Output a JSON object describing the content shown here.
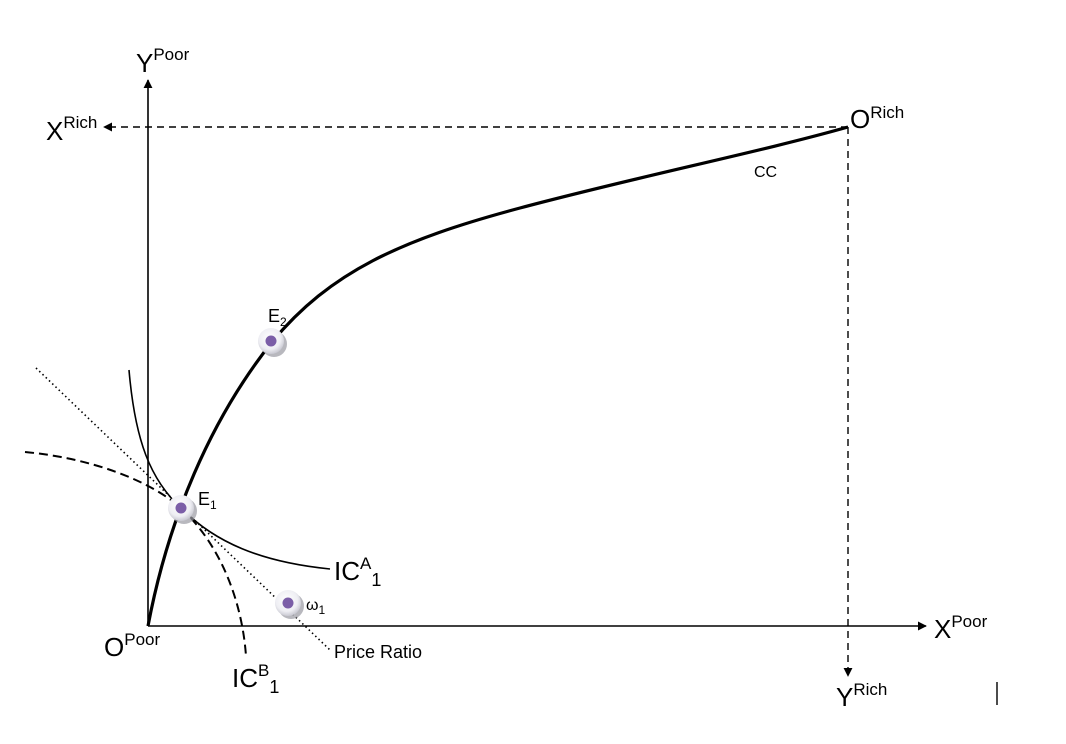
{
  "labels": {
    "y_poor": {
      "base": "Y",
      "sup": "Poor"
    },
    "x_rich": {
      "base": "X",
      "sup": "Rich"
    },
    "o_rich": {
      "base": "O",
      "sup": "Rich"
    },
    "o_poor": {
      "base": "O",
      "sup": "Poor"
    },
    "x_poor": {
      "base": "X",
      "sup": "Poor"
    },
    "y_rich": {
      "base": "Y",
      "sup": "Rich"
    },
    "cc": "CC",
    "e2": {
      "base": "E",
      "sub": "2"
    },
    "e1": {
      "base": "E",
      "sub": "1"
    },
    "omega1": {
      "base": "ω",
      "sub": "1"
    },
    "ic_a1": {
      "base": "IC",
      "sup": "A",
      "sub": "1"
    },
    "ic_b1": {
      "base": "IC",
      "sup": "B",
      "sub": "1"
    },
    "price_ratio": "Price Ratio"
  },
  "colors": {
    "point_fill": "#7b5ea7",
    "point_halo": "#e6e6ee",
    "point_shadow": "#9a9aa2",
    "line": "#000000"
  },
  "points": [
    "E2",
    "E1",
    "ω1"
  ]
}
